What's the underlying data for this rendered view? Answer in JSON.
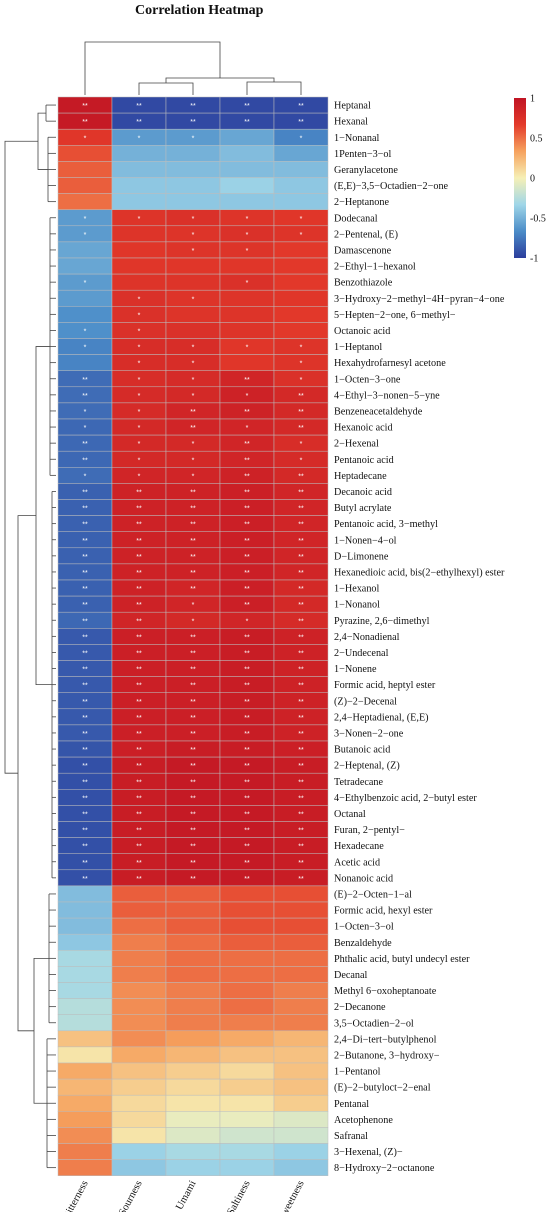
{
  "chart_data": {
    "type": "heatmap",
    "title": "Correlation Heatmap",
    "columns": [
      "Bitterness",
      "Sourness",
      "Umami",
      "Saltiness",
      "Sweetness"
    ],
    "rows": [
      "Heptanal",
      "Hexanal",
      "1−Nonanal",
      "1Penten−3−ol",
      "Geranylacetone",
      "(E,E)−3,5−Octadien−2−one",
      "2−Heptanone",
      "Dodecanal",
      "2−Pentenal, (E)",
      "Damascenone",
      "2−Ethyl−1−hexanol",
      "Benzothiazole",
      "3−Hydroxy−2−methyl−4H−pyran−4−one",
      "5−Hepten−2−one, 6−methyl−",
      "Octanoic acid",
      "1−Heptanol",
      "Hexahydrofarnesyl acetone",
      "1−Octen−3−one",
      "4−Ethyl−3−nonen−5−yne",
      "Benzeneacetaldehyde",
      "Hexanoic acid",
      "2−Hexenal",
      "Pentanoic acid",
      "Heptadecane",
      "Decanoic acid",
      "Butyl acrylate",
      "Pentanoic acid, 3−methyl",
      "1−Nonen−4−ol",
      "D−Limonene",
      "Hexanedioic acid, bis(2−ethylhexyl) ester",
      "1−Hexanol",
      "1−Nonanol",
      "Pyrazine, 2,6−dimethyl",
      "2,4−Nonadienal",
      "2−Undecenal",
      "1−Nonene",
      "Formic acid, heptyl ester",
      "(Z)−2−Decenal",
      "2,4−Heptadienal, (E,E)",
      "3−Nonen−2−one",
      "Butanoic acid",
      "2−Heptenal, (Z)",
      "Tetradecane",
      "4−Ethylbenzoic acid, 2−butyl ester",
      "Octanal",
      "Furan, 2−pentyl−",
      "Hexadecane",
      "Acetic acid",
      "Nonanoic acid",
      "(E)−2−Octen−1−al",
      "Formic acid, hexyl ester",
      "1−Octen−3−ol",
      "Benzaldehyde",
      "Phthalic acid, butyl undecyl ester",
      "Decanal",
      "Methyl 6−oxoheptanoate",
      "2−Decanone",
      "3,5−Octadien−2−ol",
      "2,4−Di−tert−butylphenol",
      "2−Butanone, 3−hydroxy−",
      "1−Pentanol",
      "(E)−2−butyloct−2−enal",
      "Pentanal",
      "Acetophenone",
      "Safranal",
      "3−Hexenal, (Z)−",
      "8−Hydroxy−2−octanone"
    ],
    "values": [
      [
        0.95,
        -0.95,
        -0.95,
        -0.95,
        -0.95
      ],
      [
        0.95,
        -0.95,
        -0.95,
        -0.95,
        -0.95
      ],
      [
        0.7,
        -0.6,
        -0.6,
        -0.55,
        -0.7
      ],
      [
        0.6,
        -0.5,
        -0.5,
        -0.45,
        -0.55
      ],
      [
        0.55,
        -0.45,
        -0.45,
        -0.45,
        -0.45
      ],
      [
        0.55,
        -0.4,
        -0.4,
        -0.35,
        -0.4
      ],
      [
        0.5,
        -0.4,
        -0.4,
        -0.4,
        -0.4
      ],
      [
        -0.6,
        0.72,
        0.75,
        0.72,
        0.7
      ],
      [
        -0.6,
        0.72,
        0.72,
        0.75,
        0.72
      ],
      [
        -0.55,
        0.7,
        0.72,
        0.72,
        0.68
      ],
      [
        -0.55,
        0.7,
        0.7,
        0.7,
        0.68
      ],
      [
        -0.6,
        0.72,
        0.72,
        0.75,
        0.68
      ],
      [
        -0.6,
        0.75,
        0.72,
        0.72,
        0.7
      ],
      [
        -0.65,
        0.75,
        0.72,
        0.72,
        0.68
      ],
      [
        -0.65,
        0.75,
        0.75,
        0.72,
        0.68
      ],
      [
        -0.7,
        0.78,
        0.78,
        0.7,
        0.72
      ],
      [
        -0.7,
        0.78,
        0.78,
        0.7,
        0.72
      ],
      [
        -0.8,
        0.78,
        0.8,
        0.85,
        0.75
      ],
      [
        -0.8,
        0.8,
        0.82,
        0.88,
        0.82
      ],
      [
        -0.8,
        0.8,
        0.85,
        0.88,
        0.82
      ],
      [
        -0.82,
        0.82,
        0.85,
        0.85,
        0.82
      ],
      [
        -0.82,
        0.82,
        0.82,
        0.85,
        0.78
      ],
      [
        -0.82,
        0.82,
        0.82,
        0.85,
        0.8
      ],
      [
        -0.8,
        0.85,
        0.85,
        0.88,
        0.82
      ],
      [
        -0.85,
        0.88,
        0.88,
        0.9,
        0.85
      ],
      [
        -0.85,
        0.88,
        0.88,
        0.9,
        0.85
      ],
      [
        -0.85,
        0.88,
        0.88,
        0.9,
        0.85
      ],
      [
        -0.85,
        0.88,
        0.88,
        0.9,
        0.85
      ],
      [
        -0.85,
        0.88,
        0.88,
        0.9,
        0.85
      ],
      [
        -0.85,
        0.88,
        0.88,
        0.9,
        0.85
      ],
      [
        -0.85,
        0.88,
        0.85,
        0.9,
        0.82
      ],
      [
        -0.85,
        0.88,
        0.85,
        0.9,
        0.82
      ],
      [
        -0.82,
        0.85,
        0.82,
        0.85,
        0.8
      ],
      [
        -0.88,
        0.9,
        0.9,
        0.92,
        0.88
      ],
      [
        -0.88,
        0.9,
        0.9,
        0.92,
        0.88
      ],
      [
        -0.88,
        0.9,
        0.9,
        0.92,
        0.88
      ],
      [
        -0.88,
        0.9,
        0.9,
        0.92,
        0.88
      ],
      [
        -0.88,
        0.9,
        0.9,
        0.92,
        0.88
      ],
      [
        -0.88,
        0.9,
        0.9,
        0.92,
        0.88
      ],
      [
        -0.88,
        0.9,
        0.9,
        0.92,
        0.88
      ],
      [
        -0.9,
        0.9,
        0.92,
        0.92,
        0.9
      ],
      [
        -0.92,
        0.92,
        0.95,
        0.95,
        0.92
      ],
      [
        -0.92,
        0.92,
        0.95,
        0.95,
        0.92
      ],
      [
        -0.92,
        0.92,
        0.95,
        0.95,
        0.92
      ],
      [
        -0.92,
        0.92,
        0.95,
        0.95,
        0.92
      ],
      [
        -0.92,
        0.92,
        0.95,
        0.95,
        0.92
      ],
      [
        -0.92,
        0.92,
        0.95,
        0.95,
        0.92
      ],
      [
        -0.92,
        0.92,
        0.95,
        0.95,
        0.92
      ],
      [
        -0.92,
        0.92,
        0.95,
        0.95,
        0.92
      ],
      [
        -0.45,
        0.55,
        0.55,
        0.6,
        0.6
      ],
      [
        -0.45,
        0.55,
        0.55,
        0.6,
        0.6
      ],
      [
        -0.45,
        0.5,
        0.55,
        0.6,
        0.6
      ],
      [
        -0.4,
        0.45,
        0.5,
        0.55,
        0.55
      ],
      [
        -0.3,
        0.45,
        0.5,
        0.5,
        0.5
      ],
      [
        -0.3,
        0.45,
        0.5,
        0.5,
        0.5
      ],
      [
        -0.3,
        0.4,
        0.45,
        0.5,
        0.45
      ],
      [
        -0.25,
        0.4,
        0.45,
        0.5,
        0.45
      ],
      [
        -0.25,
        0.4,
        0.45,
        0.45,
        0.45
      ],
      [
        0.2,
        0.4,
        0.35,
        0.3,
        0.25
      ],
      [
        0.05,
        0.3,
        0.25,
        0.2,
        0.2
      ],
      [
        0.3,
        0.2,
        0.15,
        0.1,
        0.2
      ],
      [
        0.25,
        0.15,
        0.1,
        0.15,
        0.2
      ],
      [
        0.3,
        0.1,
        0.05,
        0.05,
        0.15
      ],
      [
        0.35,
        0.1,
        -0.05,
        -0.05,
        -0.1
      ],
      [
        0.4,
        0.05,
        -0.1,
        -0.15,
        -0.15
      ],
      [
        0.45,
        -0.35,
        -0.3,
        -0.3,
        -0.35
      ],
      [
        0.45,
        -0.4,
        -0.35,
        -0.35,
        -0.4
      ]
    ],
    "significance": [
      [
        "**",
        "**",
        "**",
        "**",
        "**"
      ],
      [
        "**",
        "**",
        "**",
        "**",
        "**"
      ],
      [
        "*",
        "*",
        "*",
        "",
        "*"
      ],
      [
        "",
        "",
        "",
        "",
        ""
      ],
      [
        "",
        "",
        "",
        "",
        ""
      ],
      [
        "",
        "",
        "",
        "",
        ""
      ],
      [
        "",
        "",
        "",
        "",
        ""
      ],
      [
        "*",
        "*",
        "*",
        "*",
        "*"
      ],
      [
        "*",
        "",
        "*",
        "*",
        "*"
      ],
      [
        "",
        "",
        "*",
        "*",
        ""
      ],
      [
        "",
        "",
        "",
        "",
        ""
      ],
      [
        "*",
        "",
        "",
        "*",
        ""
      ],
      [
        "",
        "*",
        "*",
        "",
        ""
      ],
      [
        "",
        "*",
        "",
        "",
        ""
      ],
      [
        "*",
        "*",
        "",
        "",
        ""
      ],
      [
        "*",
        "*",
        "*",
        "*",
        "*"
      ],
      [
        "",
        "*",
        "*",
        "",
        "*"
      ],
      [
        "**",
        "*",
        "*",
        "**",
        "*"
      ],
      [
        "**",
        "*",
        "*",
        "*",
        "**"
      ],
      [
        "*",
        "*",
        "**",
        "**",
        "**"
      ],
      [
        "*",
        "*",
        "**",
        "*",
        "**"
      ],
      [
        "**",
        "*",
        "*",
        "**",
        "*"
      ],
      [
        "**",
        "*",
        "*",
        "**",
        "*"
      ],
      [
        "*",
        "*",
        "*",
        "**",
        "**"
      ],
      [
        "**",
        "**",
        "**",
        "**",
        "**"
      ],
      [
        "**",
        "**",
        "**",
        "**",
        "**"
      ],
      [
        "**",
        "**",
        "**",
        "**",
        "**"
      ],
      [
        "**",
        "**",
        "**",
        "**",
        "**"
      ],
      [
        "**",
        "**",
        "**",
        "**",
        "**"
      ],
      [
        "**",
        "**",
        "**",
        "**",
        "**"
      ],
      [
        "**",
        "**",
        "**",
        "**",
        "**"
      ],
      [
        "**",
        "**",
        "*",
        "**",
        "**"
      ],
      [
        "**",
        "**",
        "*",
        "*",
        "**"
      ],
      [
        "**",
        "**",
        "**",
        "**",
        "**"
      ],
      [
        "**",
        "**",
        "**",
        "**",
        "**"
      ],
      [
        "**",
        "**",
        "**",
        "**",
        "**"
      ],
      [
        "**",
        "**",
        "**",
        "**",
        "**"
      ],
      [
        "**",
        "**",
        "**",
        "**",
        "**"
      ],
      [
        "**",
        "**",
        "**",
        "**",
        "**"
      ],
      [
        "**",
        "**",
        "**",
        "**",
        "**"
      ],
      [
        "**",
        "**",
        "**",
        "**",
        "**"
      ],
      [
        "**",
        "**",
        "**",
        "**",
        "**"
      ],
      [
        "**",
        "**",
        "**",
        "**",
        "**"
      ],
      [
        "**",
        "**",
        "**",
        "**",
        "**"
      ],
      [
        "**",
        "**",
        "**",
        "**",
        "**"
      ],
      [
        "**",
        "**",
        "**",
        "**",
        "**"
      ],
      [
        "**",
        "**",
        "**",
        "**",
        "**"
      ],
      [
        "**",
        "**",
        "**",
        "**",
        "**"
      ],
      [
        "**",
        "**",
        "**",
        "**",
        "**"
      ],
      [
        "",
        "",
        "",
        "",
        ""
      ],
      [
        "",
        "",
        "",
        "",
        ""
      ],
      [
        "",
        "",
        "",
        "",
        ""
      ],
      [
        "",
        "",
        "",
        "",
        ""
      ],
      [
        "",
        "",
        "",
        "",
        ""
      ],
      [
        "",
        "",
        "",
        "",
        ""
      ],
      [
        "",
        "",
        "",
        "",
        ""
      ],
      [
        "",
        "",
        "",
        "",
        ""
      ],
      [
        "",
        "",
        "",
        "",
        ""
      ],
      [
        "",
        "",
        "",
        "",
        ""
      ],
      [
        "",
        "",
        "",
        "",
        ""
      ],
      [
        "",
        "",
        "",
        "",
        ""
      ],
      [
        "",
        "",
        "",
        "",
        ""
      ],
      [
        "",
        "",
        "",
        "",
        ""
      ],
      [
        "",
        "",
        "",
        "",
        ""
      ],
      [
        "",
        "",
        "",
        "",
        ""
      ],
      [
        "",
        "",
        "",
        "",
        ""
      ],
      [
        "",
        "",
        "",
        "",
        ""
      ]
    ],
    "colorbar": {
      "range": [
        -1,
        1
      ],
      "ticks": [
        "1",
        "0.5",
        "0",
        "-0.5",
        "-1"
      ],
      "colors": [
        "#2c3d9c",
        "#4b8cc8",
        "#9fd6e8",
        "#f6f0b6",
        "#f6a25e",
        "#e33a2a",
        "#c01424"
      ]
    },
    "legend_position": "top-right",
    "dendrograms": [
      "rows-left",
      "columns-top"
    ]
  }
}
